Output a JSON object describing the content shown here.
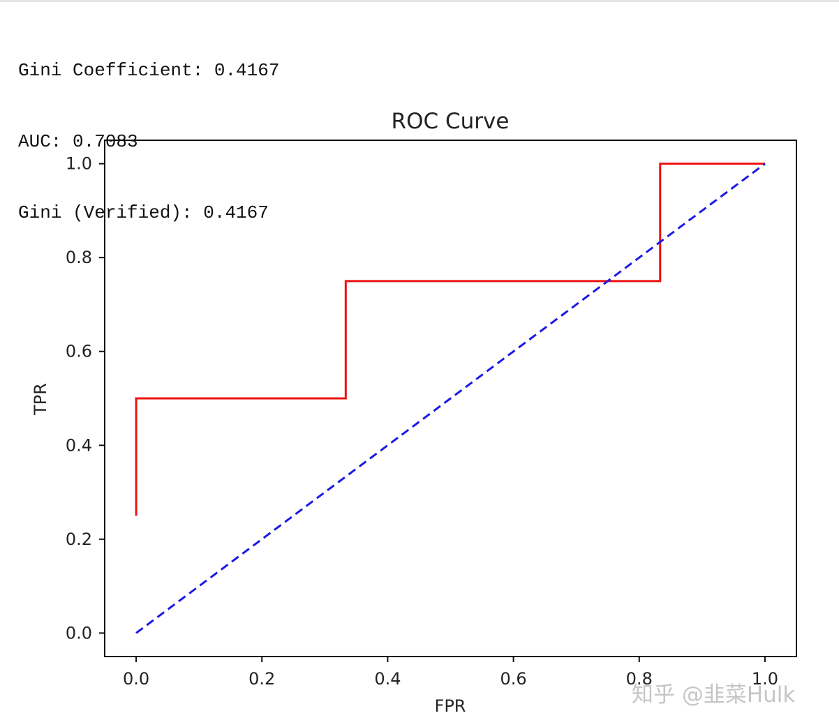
{
  "console": {
    "lines": [
      "Gini Coefficient: 0.4167",
      "AUC: 0.7083",
      "Gini (Verified): 0.4167"
    ]
  },
  "chart_data": {
    "type": "line",
    "title": "ROC Curve",
    "xlabel": "FPR",
    "ylabel": "TPR",
    "xlim": [
      -0.05,
      1.05
    ],
    "ylim": [
      -0.05,
      1.05
    ],
    "xticks": [
      0.0,
      0.2,
      0.4,
      0.6,
      0.8,
      1.0
    ],
    "xtick_labels": [
      "0.0",
      "0.2",
      "0.4",
      "0.6",
      "0.8",
      "1.0"
    ],
    "yticks": [
      0.0,
      0.2,
      0.4,
      0.6,
      0.8,
      1.0
    ],
    "ytick_labels": [
      "0.0",
      "0.2",
      "0.4",
      "0.6",
      "0.8",
      "1.0"
    ],
    "grid": false,
    "series": [
      {
        "style": "solid",
        "color": "#ee1111",
        "x": [
          0.0,
          0.0,
          0.3333,
          0.3333,
          0.8333,
          0.8333,
          1.0
        ],
        "y": [
          0.25,
          0.5,
          0.5,
          0.75,
          0.75,
          1.0,
          1.0
        ]
      },
      {
        "style": "dashed",
        "color": "#1a1ae6",
        "x": [
          0.0,
          1.0
        ],
        "y": [
          0.0,
          1.0
        ]
      }
    ]
  },
  "watermark": {
    "text": "知乎 @韭菜Hulk"
  }
}
